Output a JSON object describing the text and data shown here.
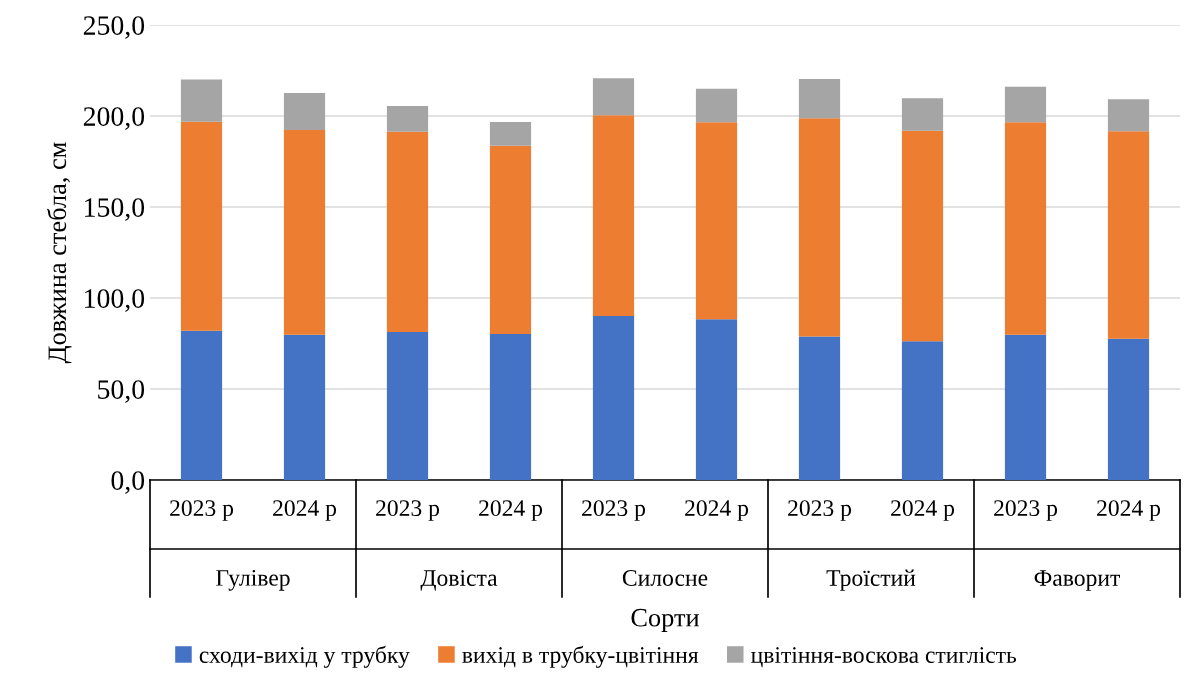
{
  "chart_data": {
    "type": "bar",
    "stacked": true,
    "xlabel": "Сорти",
    "ylabel": "Довжина стебла, см",
    "categories": [
      "2023 р",
      "2024 р",
      "2023 р",
      "2024 р",
      "2023 р",
      "2024 р",
      "2023 р",
      "2024 р",
      "2023 р",
      "2024 р"
    ],
    "annotations": [
      "Гулівер",
      "Довіста",
      "Силосне",
      "Троїстий",
      "Фаворит"
    ],
    "series": [
      {
        "name": "сходи-вихід у трубку",
        "color": "#4472c4",
        "values": [
          82.0,
          79.8,
          81.3,
          80.2,
          90.1,
          88.3,
          78.8,
          76.2,
          79.8,
          77.6
        ]
      },
      {
        "name": "вихід в трубку-цвітіння",
        "color": "#ed7d31",
        "values": [
          114.9,
          112.5,
          110.1,
          103.5,
          110.3,
          108.2,
          119.9,
          115.7,
          116.7,
          114.0
        ]
      },
      {
        "name": "цвітіння-воскова стиглість",
        "color": "#a5a5a5",
        "values": [
          23.1,
          20.3,
          14.1,
          13.0,
          20.3,
          18.5,
          21.6,
          17.8,
          19.6,
          17.6
        ]
      }
    ],
    "ylim": [
      0,
      250
    ],
    "yticks": [
      {
        "value": 0,
        "label": "0,0"
      },
      {
        "value": 50,
        "label": "50,0"
      },
      {
        "value": 100,
        "label": "100,0"
      },
      {
        "value": 150,
        "label": "150,0"
      },
      {
        "value": 200,
        "label": "200,0"
      },
      {
        "value": 250,
        "label": "250,0"
      }
    ],
    "grid": "y",
    "legend": "bottom"
  }
}
